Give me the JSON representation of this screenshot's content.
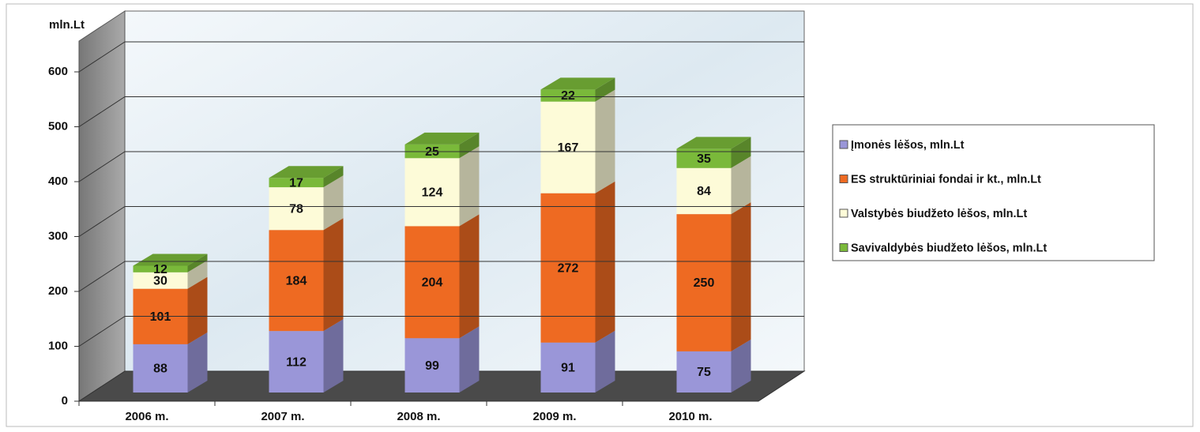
{
  "chart_data": {
    "type": "bar3d-stacked",
    "y_axis_label": "mln.Lt",
    "categories": [
      "2006 m.",
      "2007 m.",
      "2008 m.",
      "2009 m.",
      "2010 m."
    ],
    "series": [
      {
        "name": "Įmonės lėšos, mln.Lt",
        "color": "#9a96d8",
        "values": [
          88,
          112,
          99,
          91,
          75
        ]
      },
      {
        "name": "ES struktūriniai fondai ir kt., mln.Lt",
        "color": "#ee6a22",
        "values": [
          101,
          184,
          204,
          272,
          250
        ]
      },
      {
        "name": "Valstybės biudžeto lėšos, mln.Lt",
        "color": "#fdfbd8",
        "values": [
          30,
          78,
          124,
          167,
          84
        ]
      },
      {
        "name": "Savivaldybės biudžeto lėšos, mln.Lt",
        "color": "#7ab93a",
        "values": [
          12,
          17,
          25,
          22,
          35
        ]
      }
    ],
    "ylim": [
      0,
      600
    ],
    "yticks": [
      0,
      100,
      200,
      300,
      400,
      500,
      600
    ],
    "grid": true
  }
}
